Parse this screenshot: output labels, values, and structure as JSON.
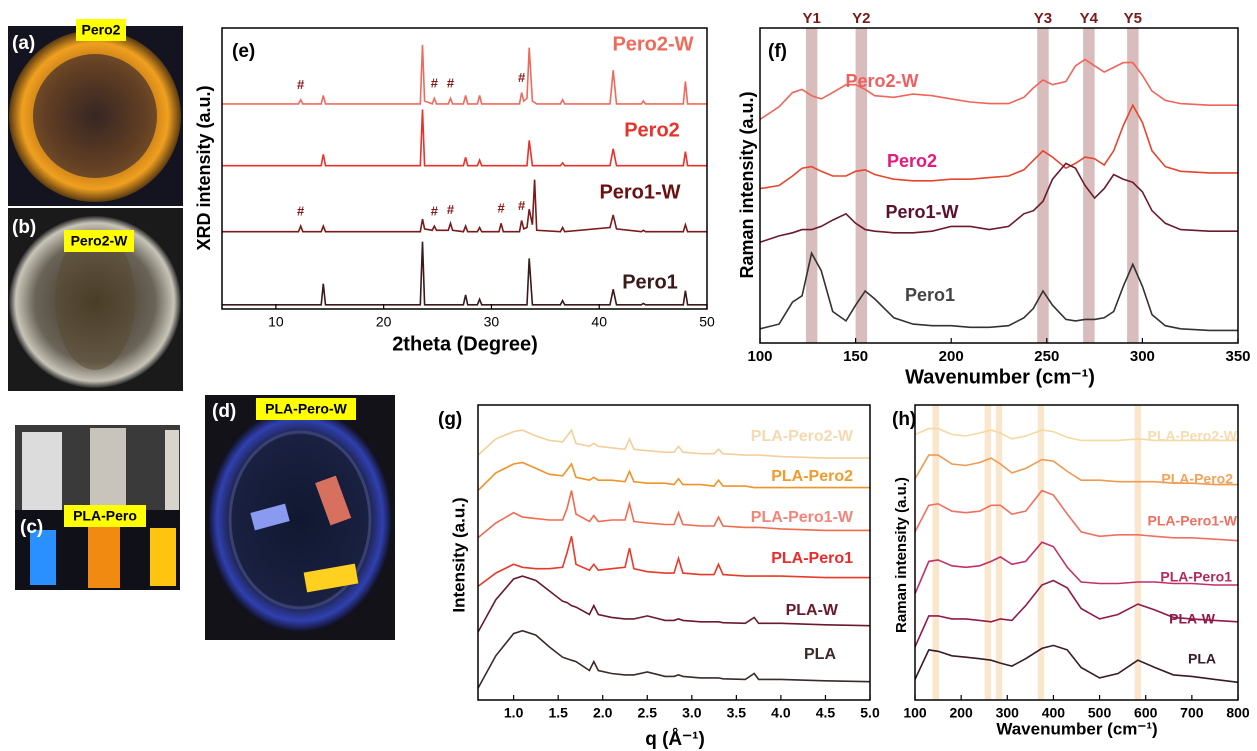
{
  "photos": [
    {
      "panel": "(a)",
      "label": "Pero2"
    },
    {
      "panel": "(b)",
      "label": "Pero2-W"
    },
    {
      "panel": "(c)",
      "label": "PLA-Pero"
    },
    {
      "panel": "(d)",
      "label": "PLA-Pero-W"
    }
  ],
  "chart_data": [
    {
      "type": "line",
      "panel": "(e)",
      "xlabel": "2theta (Degree)",
      "ylabel": "XRD intensity (a.u.)",
      "x": [
        5,
        12.1,
        12.3,
        12.5,
        14.2,
        14.4,
        14.6,
        23.4,
        23.6,
        23.8,
        24.5,
        24.7,
        24.9,
        26.0,
        26.2,
        26.4,
        27.4,
        27.6,
        27.8,
        28.7,
        28.9,
        29.1,
        30.7,
        30.9,
        31.1,
        32.6,
        32.8,
        33.0,
        33.3,
        33.5,
        33.8,
        34.0,
        34.2,
        36.4,
        36.6,
        36.8,
        41.0,
        41.3,
        41.6,
        43.9,
        44.1,
        44.3,
        47.8,
        48.0,
        48.2,
        50
      ],
      "xlim": [
        5,
        50
      ],
      "xticks": [
        10,
        20,
        30,
        40,
        50
      ],
      "ylim": [
        0,
        10
      ],
      "series": [
        {
          "name": "Pero2-W",
          "color": "#f06a5a",
          "values": [
            7.3,
            7.3,
            7.45,
            7.3,
            7.3,
            7.6,
            7.3,
            7.3,
            9.4,
            7.4,
            7.3,
            7.5,
            7.3,
            7.3,
            7.5,
            7.3,
            7.3,
            7.6,
            7.3,
            7.3,
            7.6,
            7.3,
            7.3,
            7.3,
            7.3,
            7.3,
            7.7,
            7.4,
            7.5,
            9.3,
            7.4,
            7.35,
            7.3,
            7.3,
            7.45,
            7.3,
            7.3,
            8.5,
            7.3,
            7.3,
            7.4,
            7.3,
            7.3,
            8.1,
            7.3,
            7.3
          ]
        },
        {
          "name": "Pero2",
          "color": "#e8322a",
          "values": [
            5.1,
            5.1,
            5.1,
            5.1,
            5.1,
            5.5,
            5.1,
            5.1,
            7.1,
            5.1,
            5.1,
            5.1,
            5.1,
            5.1,
            5.1,
            5.1,
            5.1,
            5.4,
            5.1,
            5.1,
            5.3,
            5.1,
            5.1,
            5.1,
            5.1,
            5.1,
            5.1,
            5.1,
            5.1,
            6.0,
            5.1,
            5.1,
            5.1,
            5.1,
            5.2,
            5.1,
            5.1,
            5.7,
            5.1,
            5.1,
            5.1,
            5.1,
            5.1,
            5.6,
            5.1,
            5.1
          ]
        },
        {
          "name": "Pero1-W",
          "color": "#7a1a1a",
          "values": [
            2.75,
            2.75,
            2.95,
            2.75,
            2.75,
            2.95,
            2.75,
            2.75,
            3.2,
            2.85,
            2.8,
            2.95,
            2.8,
            2.8,
            3.05,
            2.8,
            2.75,
            2.95,
            2.75,
            2.75,
            2.9,
            2.75,
            2.75,
            3.05,
            2.75,
            2.75,
            3.15,
            2.85,
            2.9,
            3.55,
            3.0,
            4.6,
            2.8,
            2.75,
            2.9,
            2.75,
            2.9,
            3.35,
            2.85,
            2.75,
            2.8,
            2.75,
            2.75,
            3.0,
            2.75,
            2.75
          ]
        },
        {
          "name": "Pero1",
          "color": "#3a1a1a",
          "values": [
            0.15,
            0.15,
            0.15,
            0.15,
            0.15,
            0.9,
            0.15,
            0.15,
            2.4,
            0.15,
            0.15,
            0.15,
            0.15,
            0.15,
            0.15,
            0.15,
            0.15,
            0.5,
            0.15,
            0.15,
            0.35,
            0.15,
            0.15,
            0.15,
            0.15,
            0.15,
            0.15,
            0.15,
            0.15,
            1.8,
            0.15,
            0.15,
            0.15,
            0.15,
            0.3,
            0.15,
            0.15,
            0.7,
            0.15,
            0.15,
            0.2,
            0.15,
            0.15,
            0.65,
            0.15,
            0.15
          ]
        }
      ],
      "annotations": [
        {
          "label": "#",
          "x": 12.3,
          "y": 7.95
        },
        {
          "label": "#",
          "x": 24.7,
          "y": 8.0
        },
        {
          "label": "#",
          "x": 26.2,
          "y": 8.0
        },
        {
          "label": "#",
          "x": 32.8,
          "y": 8.2
        },
        {
          "label": "#",
          "x": 12.3,
          "y": 3.45
        },
        {
          "label": "#",
          "x": 24.7,
          "y": 3.45
        },
        {
          "label": "#",
          "x": 26.2,
          "y": 3.5
        },
        {
          "label": "#",
          "x": 30.9,
          "y": 3.55
        },
        {
          "label": "#",
          "x": 32.8,
          "y": 3.65
        }
      ]
    },
    {
      "type": "line",
      "panel": "(f)",
      "xlabel": "Wavenumber (cm⁻¹)",
      "ylabel": "Raman intensity (a.u.)",
      "x": [
        100,
        110,
        117,
        122,
        127,
        132,
        138,
        145,
        150,
        155,
        160,
        170,
        180,
        190,
        200,
        210,
        220,
        230,
        238,
        243,
        248,
        253,
        260,
        265,
        270,
        275,
        280,
        285,
        290,
        295,
        300,
        305,
        312,
        320,
        335,
        350
      ],
      "xlim": [
        100,
        350
      ],
      "xticks": [
        100,
        150,
        200,
        250,
        300,
        350
      ],
      "ylim": [
        0,
        10
      ],
      "band_width": 6,
      "bands": [
        {
          "label": "Y1",
          "x": 127
        },
        {
          "label": "Y2",
          "x": 153
        },
        {
          "label": "Y3",
          "x": 248
        },
        {
          "label": "Y4",
          "x": 272
        },
        {
          "label": "Y5",
          "x": 295
        }
      ],
      "series": [
        {
          "name": "Pero2-W",
          "color": "#f0645a",
          "values": [
            7.1,
            7.5,
            7.95,
            8.05,
            7.85,
            7.75,
            7.95,
            8.2,
            8.2,
            8.05,
            7.85,
            7.8,
            7.9,
            7.85,
            7.75,
            7.65,
            7.6,
            7.6,
            7.8,
            8.1,
            8.35,
            8.2,
            8.3,
            8.8,
            9.0,
            8.8,
            8.6,
            8.75,
            8.9,
            8.9,
            8.5,
            8.0,
            7.7,
            7.6,
            7.55,
            7.55
          ]
        },
        {
          "name": "Pero2",
          "color": "#e8452e",
          "values": [
            4.9,
            5.0,
            5.3,
            5.55,
            5.6,
            5.45,
            5.3,
            5.3,
            5.45,
            5.5,
            5.35,
            5.2,
            5.15,
            5.15,
            5.2,
            5.2,
            5.25,
            5.3,
            5.5,
            5.8,
            6.1,
            5.9,
            5.55,
            5.7,
            5.9,
            5.85,
            5.65,
            6.1,
            6.9,
            7.55,
            7.0,
            6.1,
            5.6,
            5.45,
            5.4,
            5.4
          ]
        },
        {
          "name": "Pero1-W",
          "color": "#6a1a2a",
          "values": [
            3.2,
            3.4,
            3.5,
            3.6,
            3.6,
            3.7,
            3.9,
            4.1,
            3.8,
            3.6,
            3.55,
            3.5,
            3.5,
            3.55,
            3.7,
            3.7,
            3.6,
            3.7,
            4.1,
            4.2,
            4.5,
            5.2,
            5.7,
            5.55,
            5.0,
            4.6,
            4.9,
            5.35,
            5.2,
            5.1,
            4.8,
            4.2,
            3.8,
            3.6,
            3.55,
            3.55
          ]
        },
        {
          "name": "Pero1",
          "color": "#333333",
          "values": [
            0.45,
            0.6,
            1.3,
            1.5,
            2.85,
            2.3,
            1.0,
            0.7,
            1.2,
            1.65,
            1.4,
            0.8,
            0.6,
            0.55,
            0.55,
            0.5,
            0.5,
            0.55,
            0.8,
            1.1,
            1.65,
            1.2,
            0.75,
            0.7,
            0.75,
            0.75,
            0.8,
            1.0,
            1.8,
            2.5,
            1.8,
            0.9,
            0.55,
            0.45,
            0.4,
            0.4
          ]
        }
      ]
    },
    {
      "type": "line",
      "panel": "(g)",
      "xlabel": "q (Å⁻¹)",
      "ylabel": "Intensity (a.u.)",
      "x": [
        0.6,
        0.8,
        1.0,
        1.1,
        1.25,
        1.4,
        1.55,
        1.6,
        1.65,
        1.7,
        1.85,
        1.9,
        1.95,
        2.1,
        2.25,
        2.3,
        2.35,
        2.5,
        2.7,
        2.8,
        2.85,
        2.9,
        3.1,
        3.25,
        3.3,
        3.35,
        3.6,
        3.7,
        3.75,
        4.0,
        4.5,
        5.0
      ],
      "xlim": [
        0.6,
        5.0
      ],
      "xticks": [
        {
          "value": 1,
          "label": "1.0"
        },
        1.5,
        {
          "value": 2,
          "label": "2.0"
        },
        2.5,
        {
          "value": 3,
          "label": "3.0"
        },
        3.5,
        {
          "value": 4,
          "label": "4.0"
        },
        4.5,
        {
          "value": 5,
          "label": "5.0"
        }
      ],
      "ylim": [
        0,
        10
      ],
      "series": [
        {
          "name": "PLA-Pero2-W",
          "color": "#f3cf9a",
          "values": [
            8.3,
            8.85,
            9.1,
            9.15,
            8.95,
            8.8,
            8.75,
            8.95,
            9.15,
            8.7,
            8.6,
            8.7,
            8.6,
            8.55,
            8.5,
            8.85,
            8.5,
            8.45,
            8.4,
            8.4,
            8.6,
            8.4,
            8.35,
            8.35,
            8.5,
            8.35,
            8.3,
            8.3,
            8.3,
            8.25,
            8.2,
            8.2
          ]
        },
        {
          "name": "PLA-Pero2",
          "color": "#f0932a",
          "values": [
            7.1,
            7.7,
            8.0,
            8.05,
            7.85,
            7.65,
            7.6,
            7.8,
            8.0,
            7.55,
            7.45,
            7.55,
            7.45,
            7.45,
            7.4,
            7.75,
            7.4,
            7.35,
            7.35,
            7.3,
            7.5,
            7.3,
            7.3,
            7.25,
            7.45,
            7.25,
            7.25,
            7.2,
            7.2,
            7.2,
            7.2,
            7.2
          ]
        },
        {
          "name": "PLA-Pero1-W",
          "color": "#f06a50",
          "values": [
            5.5,
            6.0,
            6.35,
            6.2,
            6.15,
            6.1,
            6.1,
            6.5,
            7.1,
            6.3,
            6.05,
            6.25,
            6.05,
            6.1,
            6.1,
            6.65,
            6.05,
            6.0,
            5.95,
            5.95,
            6.35,
            5.95,
            5.9,
            5.9,
            6.2,
            5.9,
            5.85,
            5.85,
            5.85,
            5.8,
            5.75,
            5.75
          ]
        },
        {
          "name": "PLA-Pero1",
          "color": "#e83a2a",
          "values": [
            3.85,
            4.3,
            4.6,
            4.5,
            4.45,
            4.45,
            4.5,
            5.0,
            5.55,
            4.6,
            4.4,
            4.6,
            4.4,
            4.45,
            4.5,
            5.15,
            4.45,
            4.35,
            4.3,
            4.3,
            4.8,
            4.3,
            4.25,
            4.25,
            4.6,
            4.25,
            4.2,
            4.2,
            4.2,
            4.2,
            4.15,
            4.15
          ]
        },
        {
          "name": "PLA-W",
          "color": "#6a1a2a",
          "values": [
            2.3,
            3.4,
            4.1,
            4.2,
            4.05,
            3.7,
            3.35,
            3.3,
            3.2,
            3.15,
            2.9,
            3.2,
            2.9,
            2.8,
            2.75,
            2.75,
            2.75,
            2.85,
            2.7,
            2.7,
            2.75,
            2.7,
            2.65,
            2.65,
            2.65,
            2.62,
            2.6,
            2.8,
            2.6,
            2.6,
            2.55,
            2.52
          ]
        },
        {
          "name": "PLA",
          "color": "#3a2a2a",
          "values": [
            0.4,
            1.5,
            2.25,
            2.35,
            2.2,
            1.8,
            1.45,
            1.4,
            1.35,
            1.3,
            1.0,
            1.3,
            1.0,
            0.9,
            0.85,
            0.85,
            0.85,
            0.95,
            0.8,
            0.8,
            0.85,
            0.8,
            0.75,
            0.75,
            0.75,
            0.72,
            0.7,
            0.9,
            0.7,
            0.7,
            0.65,
            0.62
          ]
        }
      ]
    },
    {
      "type": "line",
      "panel": "(h)",
      "xlabel": "Wavenumber (cm⁻¹)",
      "ylabel": "Raman intensity (a.u.)",
      "x": [
        100,
        130,
        150,
        180,
        210,
        240,
        265,
        285,
        310,
        340,
        375,
        400,
        430,
        460,
        500,
        540,
        583,
        620,
        660,
        700,
        750,
        800
      ],
      "xlim": [
        100,
        800
      ],
      "xticks": [
        100,
        200,
        300,
        400,
        500,
        600,
        700,
        800
      ],
      "ylim": [
        0,
        10
      ],
      "band_width": 14,
      "bands": [
        {
          "x": 145
        },
        {
          "x": 258
        },
        {
          "x": 282
        },
        {
          "x": 373
        },
        {
          "x": 583
        }
      ],
      "series": [
        {
          "name": "PLA-Pero2-W",
          "color": "#f5d9a0",
          "values": [
            9.0,
            9.2,
            9.2,
            9.0,
            8.95,
            9.05,
            9.15,
            9.05,
            8.85,
            8.95,
            9.15,
            9.1,
            8.9,
            8.8,
            8.8,
            8.8,
            8.85,
            8.8,
            8.8,
            8.8,
            8.8,
            8.8
          ]
        },
        {
          "name": "PLA-Pero2",
          "color": "#f09a50",
          "values": [
            7.5,
            8.3,
            8.3,
            8.0,
            7.95,
            8.05,
            8.2,
            8.0,
            7.7,
            7.85,
            8.15,
            8.1,
            7.75,
            7.45,
            7.45,
            7.4,
            7.4,
            7.4,
            7.35,
            7.35,
            7.3,
            7.3
          ]
        },
        {
          "name": "PLA-Pero1-W",
          "color": "#f07060",
          "values": [
            5.7,
            6.6,
            6.65,
            6.4,
            6.35,
            6.4,
            6.6,
            6.6,
            6.3,
            6.4,
            7.1,
            6.95,
            6.3,
            5.7,
            5.55,
            5.6,
            5.6,
            5.55,
            5.5,
            5.5,
            5.45,
            5.4
          ]
        },
        {
          "name": "PLA-Pero1",
          "color": "#c0306a",
          "values": [
            3.6,
            4.7,
            4.75,
            4.55,
            4.5,
            4.55,
            4.7,
            4.85,
            4.6,
            4.7,
            5.35,
            5.2,
            4.5,
            4.0,
            3.95,
            3.95,
            4.0,
            4.0,
            3.95,
            3.95,
            3.9,
            3.9
          ]
        },
        {
          "name": "PLA-W",
          "color": "#901a4a",
          "values": [
            1.8,
            2.85,
            2.85,
            2.75,
            2.75,
            2.7,
            2.65,
            2.75,
            2.7,
            3.2,
            3.9,
            4.05,
            3.8,
            3.1,
            2.75,
            2.9,
            3.25,
            3.05,
            2.8,
            2.75,
            2.7,
            2.65
          ]
        },
        {
          "name": "PLA",
          "color": "#3a1a2a",
          "values": [
            0.7,
            1.7,
            1.65,
            1.5,
            1.45,
            1.4,
            1.35,
            1.25,
            1.15,
            1.4,
            1.75,
            1.85,
            1.7,
            1.1,
            0.75,
            0.9,
            1.35,
            1.1,
            0.85,
            0.8,
            0.7,
            0.6
          ]
        }
      ]
    }
  ]
}
